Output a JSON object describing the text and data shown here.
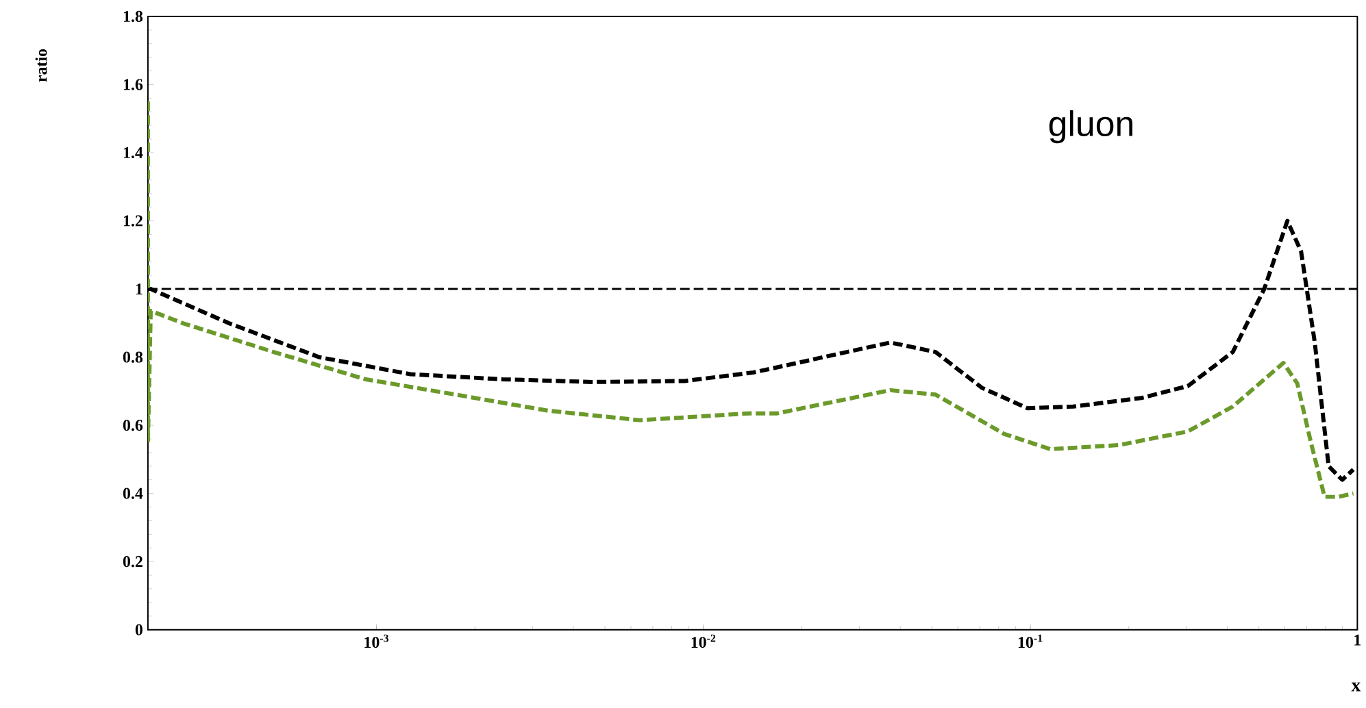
{
  "chart_data": {
    "type": "line",
    "xlabel": "x",
    "ylabel": "ratio",
    "annotations": [
      "gluon"
    ],
    "log": "x",
    "grid": false,
    "marker": "none",
    "line_style": "dashed",
    "xlim": [
      0.0002,
      1
    ],
    "xticks": [
      {
        "value": 0.001,
        "label": "10$^{-3}$"
      },
      {
        "value": 0.01,
        "label": "10$^{-2}$"
      },
      {
        "value": 0.1,
        "label": "10$^{-1}$"
      },
      1
    ],
    "ylim": [
      0,
      1.8
    ],
    "yticks": [
      0,
      0.2,
      0.4,
      0.6,
      0.8,
      1,
      1.2,
      1.4,
      1.6,
      1.8
    ],
    "ref_lines": [
      {
        "axis": "y",
        "value": 1,
        "color": "#000000",
        "line_style": "dashed"
      }
    ],
    "series": [
      {
        "color": "#000000",
        "x": [
          0.0002,
          0.000204,
          0.000353,
          0.000668,
          0.00127,
          0.00243,
          0.0046,
          0.00877,
          0.0142,
          0.0168,
          0.0373,
          0.0513,
          0.0711,
          0.098,
          0.135,
          0.218,
          0.303,
          0.416,
          0.519,
          0.611,
          0.673,
          0.741,
          0.817,
          0.899,
          0.972
        ],
        "values": [
          1.0,
          1.0,
          0.9,
          0.8,
          0.75,
          0.735,
          0.727,
          0.73,
          0.755,
          0.77,
          0.843,
          0.815,
          0.71,
          0.65,
          0.655,
          0.68,
          0.715,
          0.815,
          1.0,
          1.2,
          1.11,
          0.843,
          0.48,
          0.44,
          0.47
        ]
      },
      {
        "color": "#6b9a2a",
        "x": [
          0.0002,
          0.0002,
          0.000204,
          0.000255,
          0.000485,
          0.000927,
          0.00175,
          0.00334,
          0.00638,
          0.0138,
          0.0168,
          0.0373,
          0.0513,
          0.083,
          0.115,
          0.187,
          0.303,
          0.416,
          0.594,
          0.655,
          0.721,
          0.794,
          0.874,
          0.972
        ],
        "values": [
          1.55,
          0.55,
          0.936,
          0.9,
          0.815,
          0.735,
          0.69,
          0.643,
          0.615,
          0.635,
          0.635,
          0.703,
          0.69,
          0.575,
          0.53,
          0.542,
          0.582,
          0.655,
          0.783,
          0.723,
          0.55,
          0.39,
          0.39,
          0.4
        ]
      }
    ]
  }
}
